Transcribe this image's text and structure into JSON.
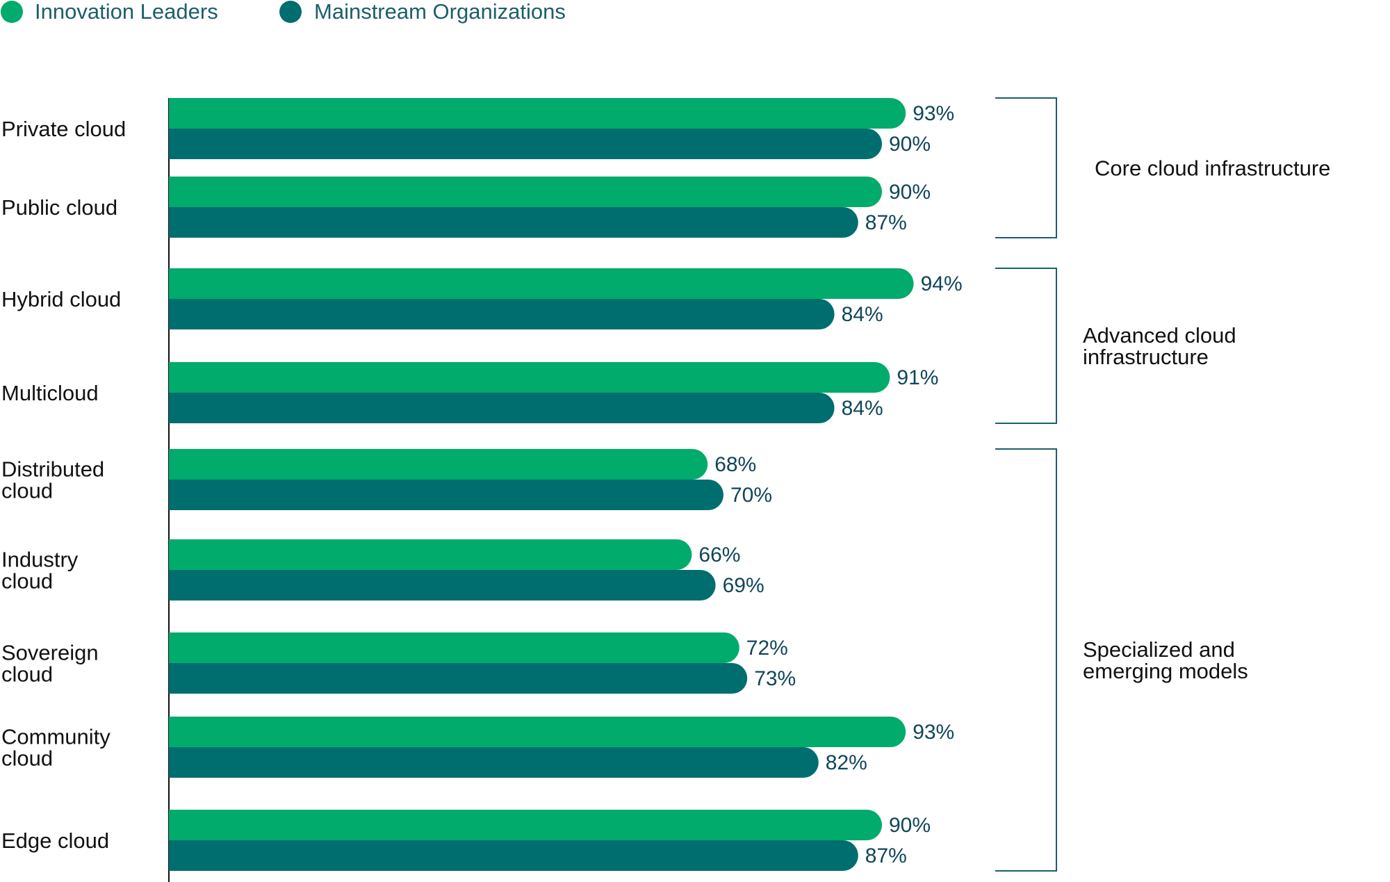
{
  "colors": {
    "series_a": "#00AB6B",
    "series_b": "#006E6E",
    "axis": "#111111",
    "bracket": "#1C5E6A",
    "value_text": "#10465A",
    "legend_text": "#1C5E6A"
  },
  "chart_data": {
    "type": "bar",
    "orientation": "horizontal",
    "title": "",
    "xlabel": "",
    "ylabel": "",
    "xlim": [
      0,
      100
    ],
    "grid": false,
    "legend_position": "top-left",
    "categories": [
      [
        "Private cloud"
      ],
      [
        "Public cloud"
      ],
      [
        "Hybrid cloud"
      ],
      [
        "Multicloud"
      ],
      [
        "Distributed",
        "cloud"
      ],
      [
        "Industry",
        "cloud"
      ],
      [
        "Sovereign",
        "cloud"
      ],
      [
        "Community",
        "cloud"
      ],
      [
        "Edge cloud"
      ]
    ],
    "series": [
      {
        "name": "Innovation Leaders",
        "color": "#00AB6B",
        "values": [
          93,
          90,
          94,
          91,
          68,
          66,
          72,
          93,
          90
        ],
        "labels": [
          "93%",
          "90%",
          "94%",
          "91%",
          "68%",
          "66%",
          "72%",
          "93%",
          "90%"
        ]
      },
      {
        "name": "Mainstream Organizations",
        "color": "#006E6E",
        "values": [
          90,
          87,
          84,
          84,
          70,
          69,
          73,
          82,
          87
        ],
        "labels": [
          "90%",
          "87%",
          "84%",
          "84%",
          "70%",
          "69%",
          "73%",
          "82%",
          "87%"
        ]
      }
    ],
    "groups": [
      {
        "label_lines": [
          "Core cloud infrastructure"
        ],
        "first": 0,
        "last": 1
      },
      {
        "label_lines": [
          "Advanced cloud",
          "infrastructure"
        ],
        "first": 2,
        "last": 3
      },
      {
        "label_lines": [
          "Specialized and",
          "emerging models"
        ],
        "first": 4,
        "last": 8
      }
    ]
  }
}
